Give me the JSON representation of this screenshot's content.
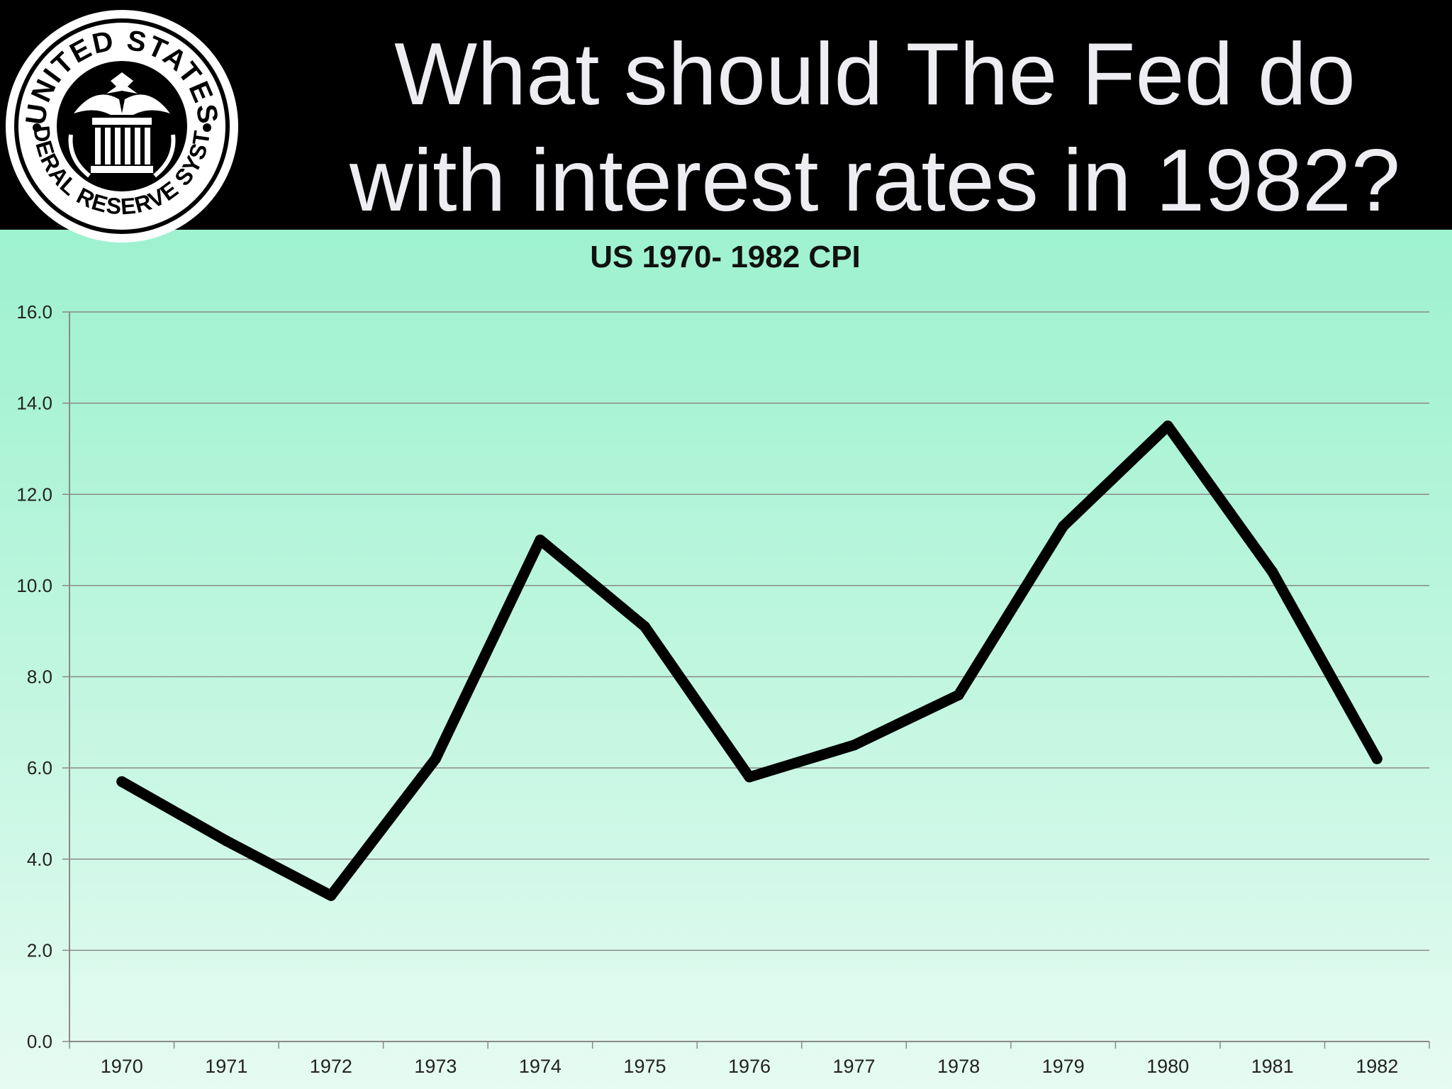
{
  "slide": {
    "title": "What should The Fed do\nwith interest rates in 1982?",
    "background_top": "#8ff0c8",
    "background_bottom": "#e6fbf2",
    "header_color": "#000000"
  },
  "seal": {
    "text_top": "UNITED STATES",
    "text_bottom": "FEDERAL RESERVE SYSTEM",
    "icon": "federal-reserve-seal"
  },
  "chart_data": {
    "type": "line",
    "title": "US 1970- 1982 CPI",
    "xlabel": "",
    "ylabel": "",
    "categories": [
      "1970",
      "1971",
      "1972",
      "1973",
      "1974",
      "1975",
      "1976",
      "1977",
      "1978",
      "1979",
      "1980",
      "1981",
      "1982"
    ],
    "series": [
      {
        "values": [
          5.7,
          4.4,
          3.2,
          6.2,
          11.0,
          9.1,
          5.8,
          6.5,
          7.6,
          11.3,
          13.5,
          10.3,
          6.2
        ],
        "color": "#000000"
      }
    ],
    "ylim": [
      0,
      16
    ],
    "yticks": [
      "0.0",
      "2.0",
      "4.0",
      "6.0",
      "8.0",
      "10.0",
      "12.0",
      "14.0",
      "16.0"
    ],
    "grid": true,
    "legend": "none"
  }
}
